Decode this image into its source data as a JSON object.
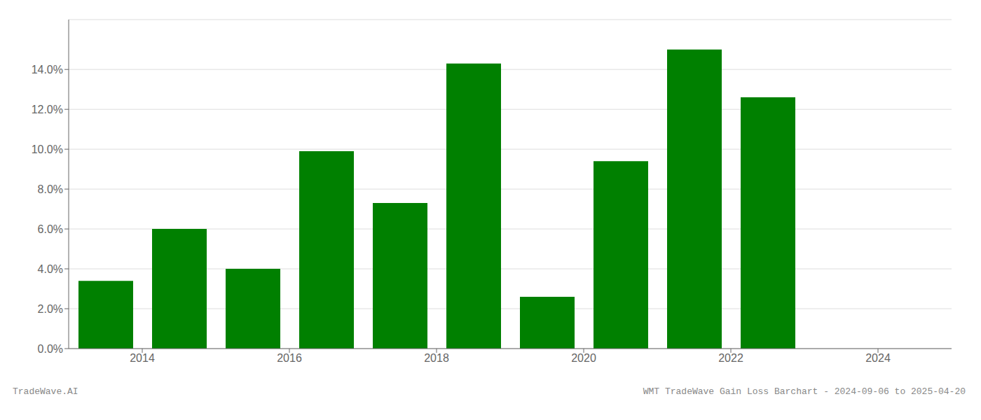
{
  "chart_data": {
    "type": "bar",
    "x": [
      2013.5,
      2014.5,
      2015.5,
      2016.5,
      2017.5,
      2018.5,
      2019.5,
      2020.5,
      2021.5,
      2022.5
    ],
    "values": [
      0.034,
      0.06,
      0.04,
      0.099,
      0.073,
      0.143,
      0.026,
      0.094,
      0.15,
      0.126
    ],
    "color": "#008000",
    "xlim": [
      2013.0,
      2025.0
    ],
    "ylim": [
      0.0,
      0.165
    ],
    "xticks": [
      2014,
      2016,
      2018,
      2020,
      2022,
      2024
    ],
    "yticks": [
      {
        "value": 0.0,
        "label": "0.0%"
      },
      {
        "value": 0.02,
        "label": "2.0%"
      },
      {
        "value": 0.04,
        "label": "4.0%"
      },
      {
        "value": 0.06,
        "label": "6.0%"
      },
      {
        "value": 0.08,
        "label": "8.0%"
      },
      {
        "value": 0.1,
        "label": "10.0%"
      },
      {
        "value": 0.12,
        "label": "12.0%"
      },
      {
        "value": 0.14,
        "label": "14.0%"
      }
    ],
    "grid": true,
    "annotations": [
      "TradeWave.AI",
      "WMT TradeWave Gain Loss Barchart - 2024-09-06 to 2025-04-20"
    ]
  }
}
